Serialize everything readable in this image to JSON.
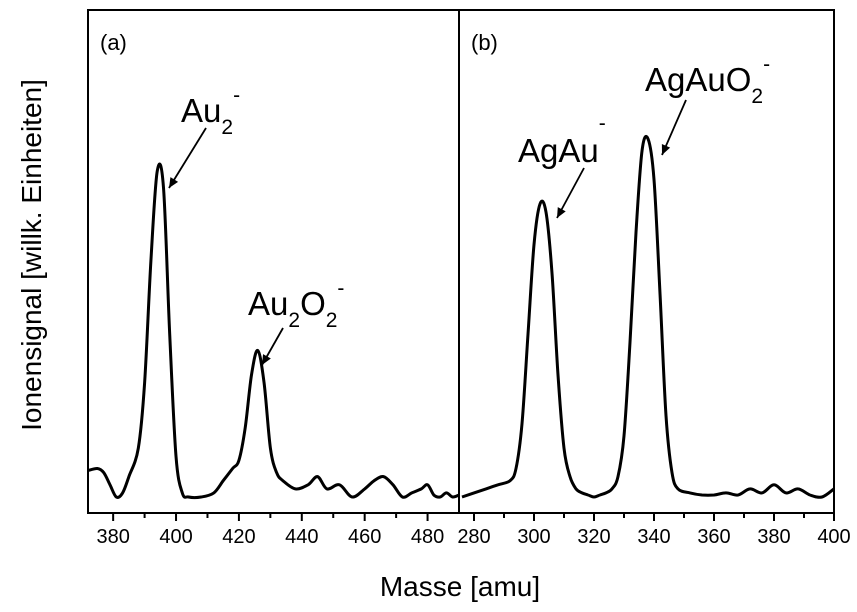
{
  "chart_data": {
    "type": "line",
    "xlabel": "Masse [amu]",
    "ylabel": "Ionensignal [willk. Einheiten]",
    "panels": [
      {
        "panel_label": "(a)",
        "xlim": [
          372,
          490
        ],
        "ylim": [
          0,
          1
        ],
        "x_ticks": [
          380,
          400,
          420,
          440,
          460,
          480
        ],
        "x_tick_labels": [
          "380",
          "400",
          "420",
          "440",
          "460",
          "480"
        ],
        "series": [
          {
            "line_color": "#000000",
            "x": [
              372,
              375,
              377,
              379,
              381,
              383,
              385,
              388,
              390,
              392,
              394,
              396,
              398,
              400,
              402,
              404,
              408,
              412,
              415,
              418,
              420,
              422,
              424,
              426,
              428,
              430,
              432,
              434,
              438,
              442,
              445,
              448,
              452,
              456,
              460,
              463,
              466,
              469,
              472,
              475,
              478,
              480,
              482,
              484,
              486,
              488,
              490
            ],
            "y": [
              0.065,
              0.07,
              0.06,
              0.03,
              0.0,
              0.01,
              0.05,
              0.12,
              0.28,
              0.58,
              0.8,
              0.76,
              0.4,
              0.1,
              0.01,
              0.0,
              0.0,
              0.01,
              0.04,
              0.07,
              0.09,
              0.17,
              0.3,
              0.36,
              0.28,
              0.12,
              0.06,
              0.04,
              0.02,
              0.03,
              0.05,
              0.02,
              0.03,
              0.0,
              0.02,
              0.04,
              0.05,
              0.03,
              0.0,
              0.01,
              0.02,
              0.03,
              0.005,
              0.0,
              0.01,
              0.0,
              0.005
            ]
          }
        ],
        "annotations": [
          {
            "label": "Au",
            "sub": "2",
            "sup": "-",
            "x": 396,
            "y": 0.78
          },
          {
            "label": "Au",
            "sub": "2",
            "text2": "O",
            "sub2": "2",
            "sup": "-",
            "x": 428,
            "y": 0.36
          }
        ]
      },
      {
        "panel_label": "(b)",
        "xlim": [
          275,
          400
        ],
        "ylim": [
          0,
          1
        ],
        "x_ticks": [
          280,
          300,
          320,
          340,
          360,
          380,
          400
        ],
        "x_tick_labels": [
          "280",
          "300",
          "320",
          "340",
          "360",
          "380",
          "400"
        ],
        "series": [
          {
            "line_color": "#000000",
            "x": [
              276,
              280,
              284,
              288,
              292,
              294,
              296,
              298,
              300,
              302,
              304,
              306,
              308,
              310,
              312,
              314,
              316,
              318,
              320,
              322,
              324,
              326,
              328,
              330,
              332,
              334,
              336,
              338,
              340,
              342,
              344,
              346,
              348,
              352,
              356,
              360,
              364,
              368,
              372,
              376,
              380,
              384,
              388,
              392,
              396,
              400
            ],
            "y": [
              0.0,
              0.01,
              0.02,
              0.03,
              0.04,
              0.07,
              0.18,
              0.4,
              0.62,
              0.72,
              0.7,
              0.55,
              0.3,
              0.12,
              0.05,
              0.02,
              0.01,
              0.005,
              0.0,
              0.005,
              0.01,
              0.02,
              0.05,
              0.15,
              0.38,
              0.65,
              0.85,
              0.88,
              0.78,
              0.5,
              0.2,
              0.06,
              0.02,
              0.01,
              0.005,
              0.005,
              0.01,
              0.005,
              0.02,
              0.01,
              0.03,
              0.01,
              0.02,
              0.005,
              0.0,
              0.02
            ]
          }
        ],
        "annotations": [
          {
            "label": "AgAu",
            "sup": "-",
            "x": 305,
            "y": 0.7
          },
          {
            "label": "AgAuO",
            "sub": "2",
            "sup": "-",
            "x": 339,
            "y": 0.86
          }
        ]
      }
    ]
  }
}
